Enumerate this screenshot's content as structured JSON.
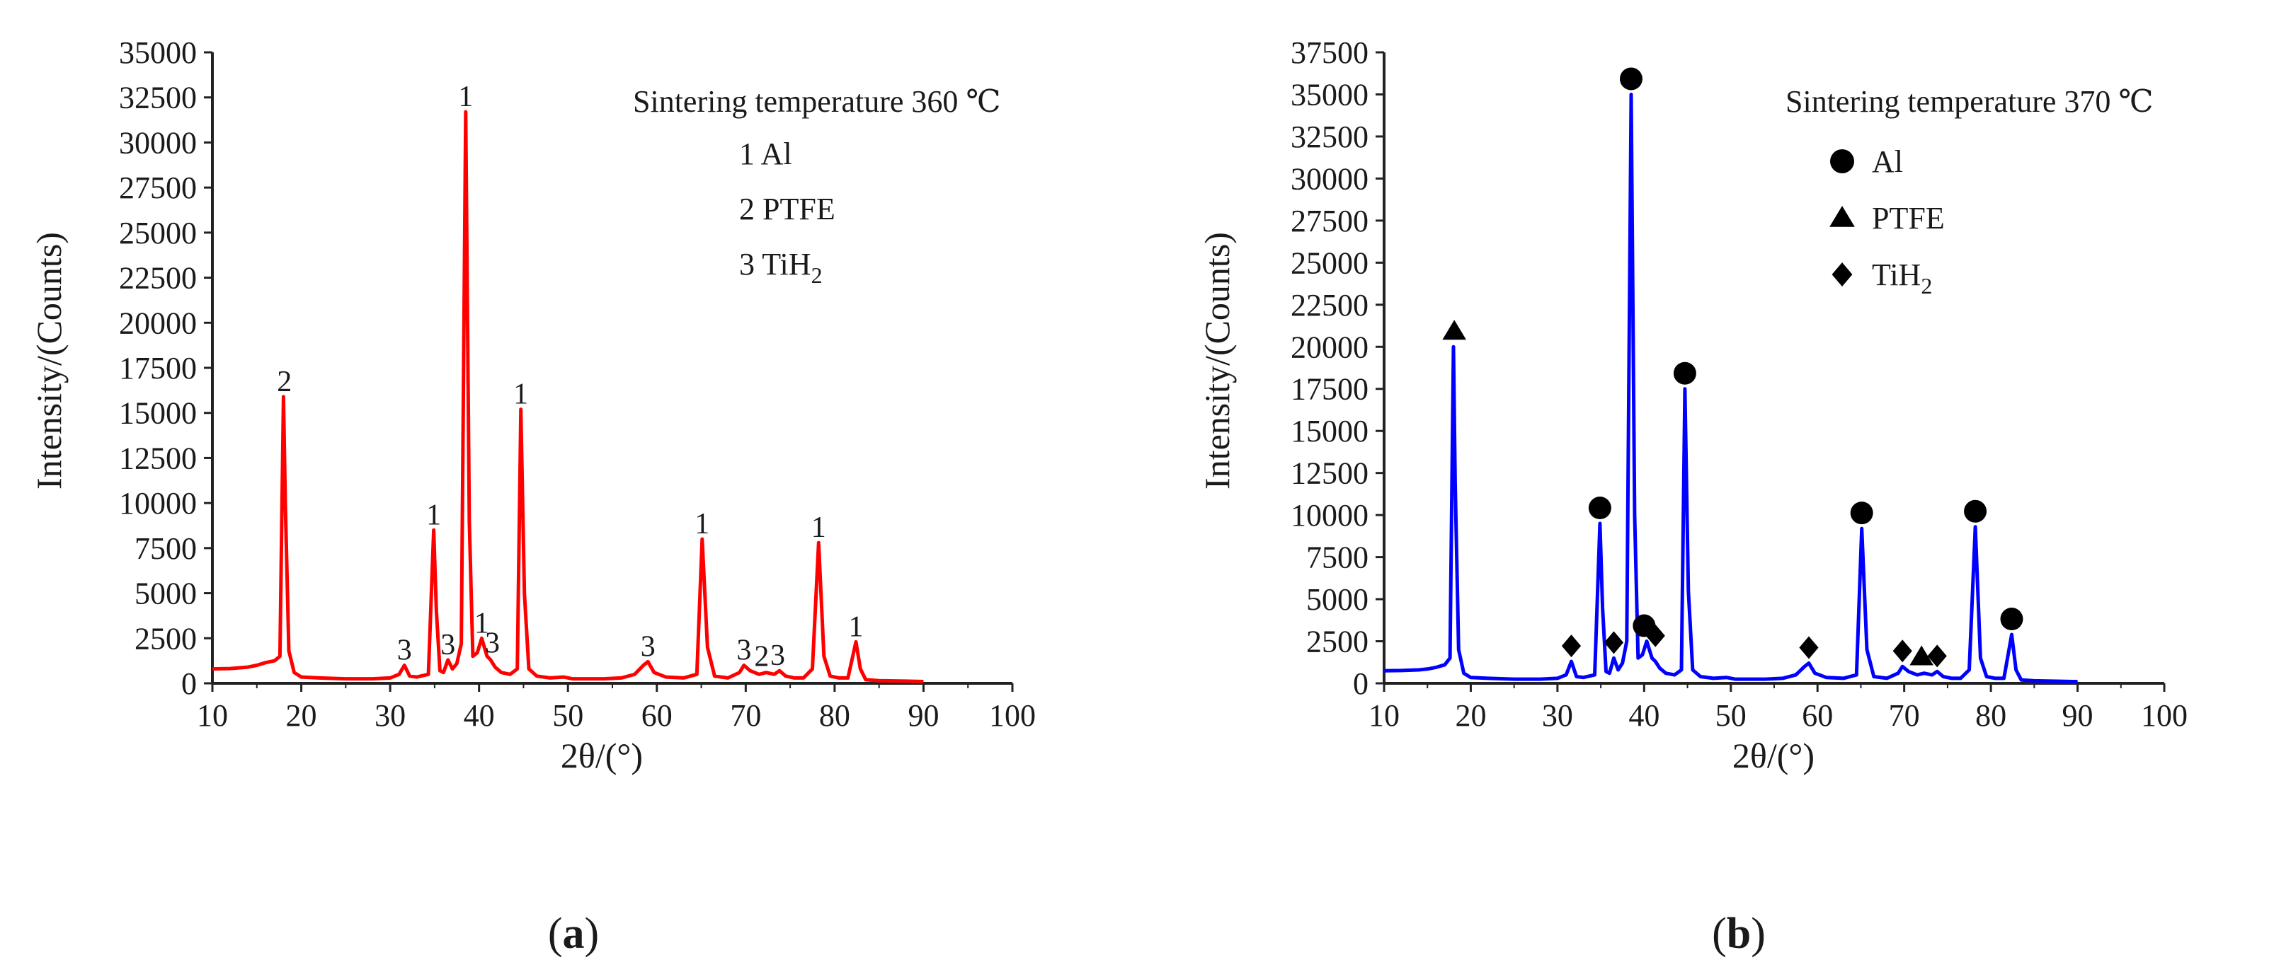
{
  "figure": {
    "captions": [
      {
        "open": "(",
        "letter": "a",
        "close": ")"
      },
      {
        "open": "(",
        "letter": "b",
        "close": ")"
      }
    ]
  },
  "chart_data": [
    {
      "type": "line",
      "id": "a",
      "title": "Sintering temperature 360 ℃",
      "xlabel": "2θ/(°)",
      "ylabel": "Intensity/(Counts)",
      "xlim": [
        10,
        100
      ],
      "ylim": [
        0,
        35000
      ],
      "xticks": [
        10,
        20,
        30,
        40,
        50,
        60,
        70,
        80,
        90,
        100
      ],
      "yticks": [
        0,
        2500,
        5000,
        7500,
        10000,
        12500,
        15000,
        17500,
        20000,
        22500,
        25000,
        27500,
        30000,
        32500,
        35000
      ],
      "grid": false,
      "series": [
        {
          "name": "Sintering temperature 360 ℃",
          "color": "#ff0000",
          "x": [
            10,
            12,
            14,
            15,
            16,
            17,
            17.6,
            18.0,
            18.2,
            18.6,
            19.2,
            20,
            22,
            25,
            28,
            30,
            31,
            31.6,
            32.2,
            33,
            34.3,
            34.9,
            35.2,
            35.6,
            36,
            36.5,
            37.0,
            37.5,
            38.0,
            38.5,
            38.9,
            39.3,
            39.8,
            40.3,
            40.9,
            41.3,
            41.8,
            42.5,
            43.5,
            44.3,
            44.7,
            45.1,
            45.6,
            46.5,
            48,
            49.5,
            50.5,
            52,
            54,
            56,
            57.5,
            58.5,
            59,
            59.7,
            61,
            63,
            64.5,
            65.1,
            65.7,
            66.5,
            68,
            69.3,
            69.8,
            70.5,
            71.5,
            72.3,
            73.2,
            73.8,
            74.5,
            75.5,
            76.5,
            77.5,
            78.2,
            78.8,
            79.5,
            80.5,
            81.5,
            82.4,
            82.9,
            83.5,
            85,
            88,
            90
          ],
          "y": [
            800,
            820,
            900,
            1000,
            1150,
            1250,
            1500,
            15900,
            10000,
            1800,
            600,
            350,
            300,
            250,
            250,
            300,
            500,
            1000,
            400,
            350,
            500,
            8500,
            4000,
            700,
            600,
            1300,
            800,
            1100,
            2200,
            31700,
            9000,
            1500,
            1700,
            2500,
            1500,
            1300,
            900,
            600,
            500,
            800,
            15200,
            5000,
            800,
            400,
            300,
            350,
            250,
            250,
            250,
            300,
            500,
            1000,
            1200,
            600,
            350,
            300,
            500,
            8000,
            2000,
            400,
            300,
            600,
            1000,
            700,
            500,
            600,
            500,
            700,
            400,
            300,
            300,
            800,
            7800,
            1500,
            400,
            300,
            300,
            2300,
            800,
            200,
            150,
            120,
            100
          ]
        }
      ],
      "legend": {
        "position": "top-right",
        "entries": [
          {
            "number": "1",
            "name": "Al"
          },
          {
            "number": "2",
            "name": "PTFE"
          },
          {
            "number": "3",
            "name": "TiH",
            "sub": "2"
          }
        ]
      },
      "annotations": [
        {
          "text": "2",
          "x": 18.1,
          "y": 15900
        },
        {
          "text": "3",
          "x": 31.6,
          "y": 1000
        },
        {
          "text": "1",
          "x": 34.9,
          "y": 8500
        },
        {
          "text": "3",
          "x": 36.5,
          "y": 1300
        },
        {
          "text": "1",
          "x": 38.5,
          "y": 31700
        },
        {
          "text": "1",
          "x": 40.3,
          "y": 2500
        },
        {
          "text": "3",
          "x": 41.5,
          "y": 1400
        },
        {
          "text": "1",
          "x": 44.7,
          "y": 15200
        },
        {
          "text": "3",
          "x": 59.0,
          "y": 1200
        },
        {
          "text": "1",
          "x": 65.1,
          "y": 8000
        },
        {
          "text": "3",
          "x": 69.8,
          "y": 1000
        },
        {
          "text": "2",
          "x": 71.8,
          "y": 650
        },
        {
          "text": "3",
          "x": 73.6,
          "y": 700
        },
        {
          "text": "1",
          "x": 78.2,
          "y": 7800
        },
        {
          "text": "1",
          "x": 82.4,
          "y": 2300
        }
      ]
    },
    {
      "type": "line",
      "id": "b",
      "title": "Sintering temperature 370 ℃",
      "xlabel": "2θ/(°)",
      "ylabel": "Intensity/(Counts)",
      "xlim": [
        10,
        100
      ],
      "ylim": [
        0,
        37500
      ],
      "xticks": [
        10,
        20,
        30,
        40,
        50,
        60,
        70,
        80,
        90,
        100
      ],
      "yticks": [
        0,
        2500,
        5000,
        7500,
        10000,
        12500,
        15000,
        17500,
        20000,
        22500,
        25000,
        27500,
        30000,
        32500,
        35000,
        37500
      ],
      "grid": false,
      "series": [
        {
          "name": "Sintering temperature 370 ℃",
          "color": "#0000ff",
          "x": [
            10,
            12,
            14,
            15,
            16,
            17,
            17.6,
            18.0,
            18.2,
            18.6,
            19.2,
            20,
            22,
            25,
            28,
            30,
            31,
            31.6,
            32.2,
            33,
            34.3,
            34.9,
            35.2,
            35.6,
            36,
            36.5,
            37.0,
            37.5,
            38.0,
            38.5,
            38.9,
            39.3,
            39.8,
            40.3,
            40.9,
            41.3,
            41.8,
            42.5,
            43.5,
            44.3,
            44.7,
            45.1,
            45.6,
            46.5,
            48,
            49.5,
            50.5,
            52,
            54,
            56,
            57.5,
            58.5,
            59,
            59.7,
            61,
            63,
            64.5,
            65.1,
            65.7,
            66.5,
            68,
            69.3,
            69.8,
            70.5,
            71.5,
            72.3,
            73.2,
            73.8,
            74.5,
            75.5,
            76.5,
            77.5,
            78.2,
            78.8,
            79.5,
            80.5,
            81.5,
            82.4,
            82.9,
            83.5,
            85,
            88,
            90
          ],
          "y": [
            750,
            760,
            800,
            850,
            950,
            1100,
            1500,
            20000,
            12000,
            2000,
            600,
            350,
            300,
            250,
            250,
            300,
            500,
            1300,
            400,
            350,
            500,
            9500,
            4500,
            700,
            600,
            1500,
            800,
            1200,
            2500,
            35000,
            10000,
            1500,
            1700,
            2500,
            1500,
            1300,
            900,
            600,
            500,
            800,
            17500,
            5500,
            800,
            400,
            300,
            350,
            250,
            250,
            250,
            300,
            500,
            1000,
            1200,
            600,
            350,
            300,
            500,
            9200,
            2000,
            400,
            300,
            600,
            1000,
            700,
            500,
            600,
            500,
            700,
            400,
            300,
            300,
            800,
            9300,
            1500,
            400,
            300,
            300,
            2900,
            800,
            200,
            150,
            120,
            100
          ]
        }
      ],
      "legend": {
        "position": "top-right",
        "entries": [
          {
            "marker": "circle",
            "name": "Al"
          },
          {
            "marker": "triangle",
            "name": "PTFE"
          },
          {
            "marker": "diamond",
            "name": "TiH",
            "sub": "2"
          }
        ]
      },
      "annotations": [
        {
          "marker": "triangle",
          "x": 18.1,
          "y": 20000
        },
        {
          "marker": "diamond",
          "x": 31.6,
          "y": 1300
        },
        {
          "marker": "circle",
          "x": 34.9,
          "y": 9500
        },
        {
          "marker": "diamond",
          "x": 36.5,
          "y": 1500
        },
        {
          "marker": "circle",
          "x": 38.5,
          "y": 35000
        },
        {
          "marker": "circle",
          "x": 40.0,
          "y": 2500
        },
        {
          "marker": "diamond",
          "x": 41.3,
          "y": 1900
        },
        {
          "marker": "circle",
          "x": 44.7,
          "y": 17500
        },
        {
          "marker": "diamond",
          "x": 59.0,
          "y": 1200
        },
        {
          "marker": "circle",
          "x": 65.1,
          "y": 9200
        },
        {
          "marker": "diamond",
          "x": 69.8,
          "y": 1000
        },
        {
          "marker": "triangle",
          "x": 72.0,
          "y": 650
        },
        {
          "marker": "diamond",
          "x": 73.8,
          "y": 700
        },
        {
          "marker": "circle",
          "x": 78.2,
          "y": 9300
        },
        {
          "marker": "circle",
          "x": 82.4,
          "y": 2900
        }
      ]
    }
  ]
}
